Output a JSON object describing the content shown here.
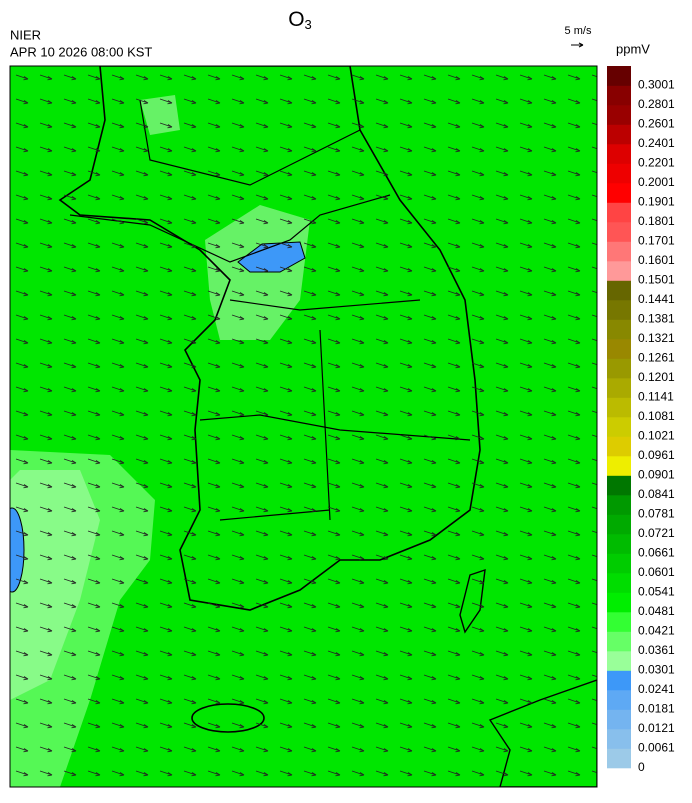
{
  "header": {
    "title": {
      "main": "O",
      "subscript": "3"
    },
    "agency": "NIER",
    "datetime": "APR 10 2026 08:00 KST",
    "vector_scale": "5 m/s"
  },
  "colorbar": {
    "unit": "ppmV",
    "ticks": [
      0,
      0.0061,
      0.0121,
      0.0181,
      0.0241,
      0.0301,
      0.0361,
      0.0421,
      0.0481,
      0.0541,
      0.0601,
      0.0661,
      0.0721,
      0.0781,
      0.0841,
      0.0901,
      0.0961,
      0.1021,
      0.1081,
      0.1141,
      0.1201,
      0.1261,
      0.1321,
      0.1381,
      0.1441,
      0.1501,
      0.1601,
      0.1701,
      0.1801,
      0.1901,
      0.2001,
      0.2201,
      0.2401,
      0.2601,
      0.2801,
      0.3001
    ],
    "colors": [
      "#9ccae8",
      "#88bfec",
      "#74b4f0",
      "#5ea9f4",
      "#3d98f8",
      "#99ff99",
      "#66ff66",
      "#33ff33",
      "#00ee00",
      "#00dd00",
      "#00cc00",
      "#00bb00",
      "#00aa00",
      "#009900",
      "#007700",
      "#eeee00",
      "#ddcc00",
      "#cccc00",
      "#bbbb00",
      "#aaaa00",
      "#999900",
      "#998800",
      "#888800",
      "#777700",
      "#666600",
      "#ff9999",
      "#ff7777",
      "#ff5555",
      "#ff4444",
      "#ff0000",
      "#ee0000",
      "#dd0000",
      "#bb0000",
      "#990000",
      "#880000",
      "#660000"
    ]
  }
}
